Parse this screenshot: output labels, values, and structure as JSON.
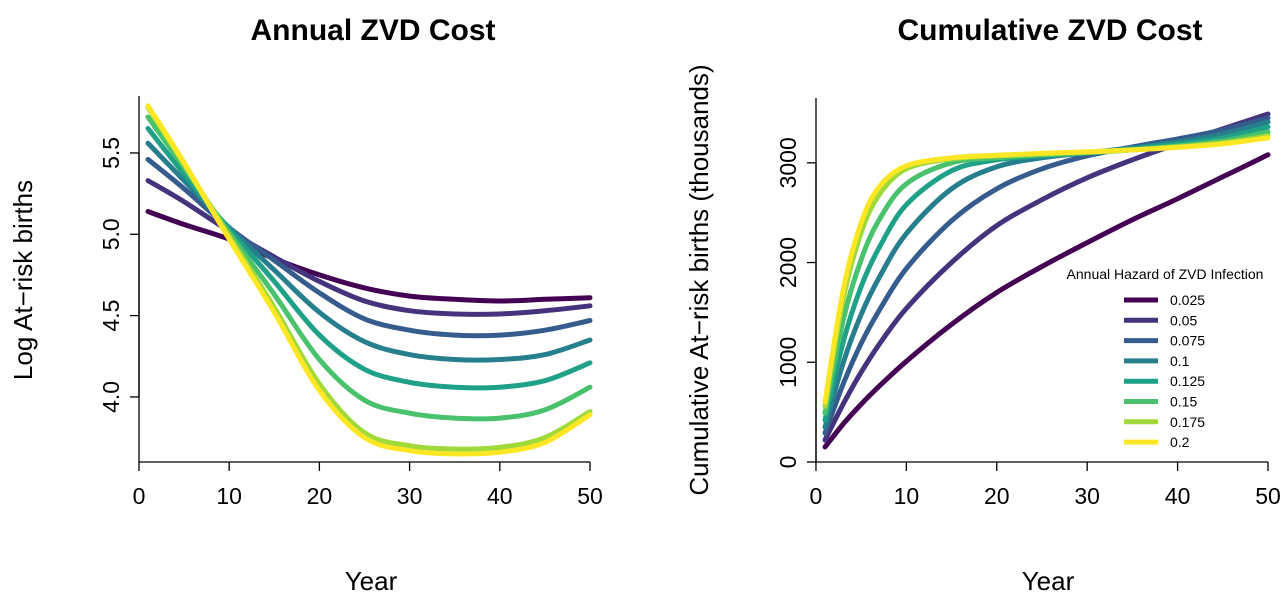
{
  "chart_data": [
    {
      "type": "line",
      "title": "Annual ZVD Cost",
      "xlabel": "Year",
      "ylabel": "Log At−risk births",
      "xlim": [
        1,
        50
      ],
      "ylim": [
        3.6,
        5.85
      ],
      "xticks": [
        0,
        10,
        20,
        30,
        40,
        50
      ],
      "yticks": [
        4.0,
        4.5,
        5.0,
        5.5
      ],
      "ytick_labels": [
        "4.0",
        "4.5",
        "5.0",
        "5.5"
      ],
      "grid": false,
      "x": [
        1,
        5,
        10,
        15,
        20,
        25,
        30,
        35,
        40,
        45,
        50
      ],
      "series": [
        {
          "name": "0.025",
          "color": "#440154",
          "values": [
            5.14,
            5.06,
            4.97,
            4.85,
            4.75,
            4.67,
            4.62,
            4.6,
            4.59,
            4.6,
            4.61
          ]
        },
        {
          "name": "0.05",
          "color": "#46337E",
          "values": [
            5.33,
            5.2,
            5.02,
            4.86,
            4.71,
            4.59,
            4.53,
            4.51,
            4.51,
            4.53,
            4.56
          ]
        },
        {
          "name": "0.075",
          "color": "#365C8D",
          "values": [
            5.46,
            5.28,
            5.04,
            4.84,
            4.64,
            4.48,
            4.41,
            4.38,
            4.38,
            4.41,
            4.47
          ]
        },
        {
          "name": "0.1",
          "color": "#277F8E",
          "values": [
            5.56,
            5.33,
            5.04,
            4.78,
            4.52,
            4.34,
            4.26,
            4.23,
            4.23,
            4.26,
            4.35
          ]
        },
        {
          "name": "0.125",
          "color": "#1FA187",
          "values": [
            5.65,
            5.37,
            5.03,
            4.71,
            4.38,
            4.17,
            4.09,
            4.06,
            4.06,
            4.1,
            4.21
          ]
        },
        {
          "name": "0.15",
          "color": "#4AC16D",
          "values": [
            5.72,
            5.41,
            5.01,
            4.63,
            4.23,
            3.98,
            3.9,
            3.87,
            3.87,
            3.92,
            4.06
          ]
        },
        {
          "name": "0.175",
          "color": "#9FDA3A",
          "values": [
            5.78,
            5.43,
            4.99,
            4.55,
            4.08,
            3.78,
            3.7,
            3.68,
            3.69,
            3.75,
            3.91
          ]
        },
        {
          "name": "0.2",
          "color": "#FDE725",
          "values": [
            5.79,
            5.44,
            4.97,
            4.52,
            4.04,
            3.75,
            3.67,
            3.65,
            3.66,
            3.72,
            3.89
          ]
        }
      ]
    },
    {
      "type": "line",
      "title": "Cumulative ZVD Cost",
      "xlabel": "Year",
      "ylabel": "Cumulative At−risk births (thousands)",
      "xlim": [
        1,
        50
      ],
      "ylim": [
        0,
        3650
      ],
      "xticks": [
        0,
        10,
        20,
        30,
        40,
        50
      ],
      "yticks": [
        0,
        1000,
        2000,
        3000
      ],
      "ytick_labels": [
        "0",
        "1000",
        "2000",
        "3000"
      ],
      "grid": false,
      "legend": {
        "title": "Annual Hazard of ZVD Infection",
        "position": "right"
      },
      "x": [
        1,
        3,
        5,
        7,
        10,
        15,
        20,
        25,
        30,
        35,
        40,
        45,
        50
      ],
      "series": [
        {
          "name": "0.025",
          "color": "#440154",
          "values": [
            150,
            380,
            580,
            760,
            1010,
            1380,
            1700,
            1960,
            2200,
            2430,
            2640,
            2860,
            3080
          ]
        },
        {
          "name": "0.05",
          "color": "#46337E",
          "values": [
            220,
            580,
            900,
            1180,
            1540,
            2000,
            2370,
            2630,
            2850,
            3030,
            3190,
            3340,
            3490
          ]
        },
        {
          "name": "0.075",
          "color": "#365C8D",
          "values": [
            290,
            780,
            1190,
            1520,
            1940,
            2420,
            2740,
            2940,
            3070,
            3160,
            3240,
            3330,
            3450
          ]
        },
        {
          "name": "0.1",
          "color": "#277F8E",
          "values": [
            350,
            990,
            1480,
            1850,
            2290,
            2740,
            2960,
            3050,
            3100,
            3150,
            3210,
            3290,
            3410
          ]
        },
        {
          "name": "0.125",
          "color": "#1FA187",
          "values": [
            420,
            1200,
            1760,
            2150,
            2580,
            2920,
            3030,
            3070,
            3100,
            3140,
            3190,
            3250,
            3360
          ]
        },
        {
          "name": "0.15",
          "color": "#4AC16D",
          "values": [
            490,
            1420,
            2030,
            2430,
            2790,
            3000,
            3050,
            3080,
            3100,
            3130,
            3170,
            3220,
            3310
          ]
        },
        {
          "name": "0.175",
          "color": "#9FDA3A",
          "values": [
            560,
            1630,
            2300,
            2680,
            2940,
            3040,
            3070,
            3090,
            3110,
            3130,
            3160,
            3200,
            3270
          ]
        },
        {
          "name": "0.2",
          "color": "#FDE725",
          "values": [
            600,
            1720,
            2400,
            2760,
            2970,
            3050,
            3075,
            3095,
            3110,
            3130,
            3155,
            3190,
            3250
          ]
        }
      ]
    }
  ]
}
